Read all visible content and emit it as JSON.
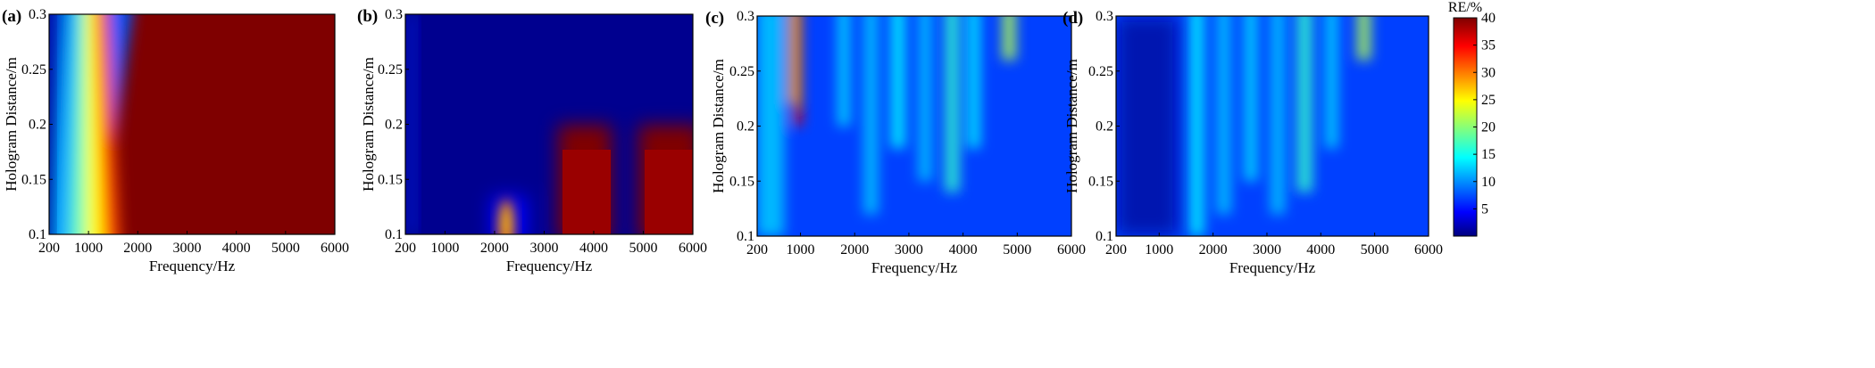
{
  "chart_data": [
    {
      "type": "heatmap",
      "panel_label": "(a)",
      "xlabel": "Frequency/Hz",
      "ylabel": "Hologram Distance/m",
      "xlim": [
        200,
        6000
      ],
      "ylim": [
        0.1,
        0.3
      ],
      "xticks": [
        "200",
        "1000",
        "2000",
        "3000",
        "4000",
        "5000",
        "6000"
      ],
      "xtick_values": [
        200,
        1000,
        2000,
        3000,
        4000,
        5000,
        6000
      ],
      "yticks": [
        "0.1",
        "0.15",
        "0.2",
        "0.25",
        "0.3"
      ],
      "ytick_values": [
        0.1,
        0.15,
        0.2,
        0.25,
        0.3
      ],
      "description_regions": [
        {
          "from_freq_at_y01": 200,
          "to_freq_at_y01": 1200,
          "from_freq_at_y03": 200,
          "to_freq_at_y03": 900,
          "value": 3
        },
        {
          "boundary_freq_at_y01": 1700,
          "boundary_freq_at_y03": 1180,
          "value_above": 40
        }
      ]
    },
    {
      "type": "heatmap",
      "panel_label": "(b)",
      "xlabel": "Frequency/Hz",
      "ylabel": "Hologram Distance/m",
      "xlim": [
        200,
        6000
      ],
      "ylim": [
        0.1,
        0.3
      ],
      "xticks": [
        "200",
        "1000",
        "2000",
        "3000",
        "4000",
        "5000",
        "6000"
      ],
      "xtick_values": [
        200,
        1000,
        2000,
        3000,
        4000,
        5000,
        6000
      ],
      "yticks": [
        "0.1",
        "0.15",
        "0.2",
        "0.25",
        "0.3"
      ],
      "ytick_values": [
        0.1,
        0.15,
        0.2,
        0.25,
        0.3
      ],
      "high_regions": [
        {
          "x": [
            2150,
            2600
          ],
          "y": [
            0.1,
            0.145
          ],
          "peak": 35
        },
        {
          "x": [
            3300,
            4400
          ],
          "y": [
            0.1,
            0.19
          ],
          "peak": 40
        },
        {
          "x": [
            5300,
            6000
          ],
          "y": [
            0.1,
            0.19
          ],
          "peak": 40
        }
      ]
    },
    {
      "type": "heatmap",
      "panel_label": "(c)",
      "xlabel": "Frequency/Hz",
      "ylabel": "Hologram Distance/m",
      "xlim": [
        200,
        6000
      ],
      "ylim": [
        0.1,
        0.3
      ],
      "xticks": [
        "200",
        "1000",
        "2000",
        "3000",
        "4000",
        "5000",
        "6000"
      ],
      "xtick_values": [
        200,
        1000,
        2000,
        3000,
        4000,
        5000,
        6000
      ],
      "yticks": [
        "0.1",
        "0.15",
        "0.2",
        "0.25",
        "0.3"
      ],
      "ytick_values": [
        0.1,
        0.15,
        0.2,
        0.25,
        0.3
      ],
      "streaks": [
        {
          "x": 450,
          "w": 500,
          "y0": 0.1,
          "y1": 0.3,
          "value": 13
        },
        {
          "x": 950,
          "w": 160,
          "y0": 0.2,
          "y1": 0.3,
          "value": 36
        },
        {
          "x": 870,
          "w": 180,
          "y0": 0.22,
          "y1": 0.3,
          "value": 28
        },
        {
          "x": 1800,
          "w": 220,
          "y0": 0.2,
          "y1": 0.3,
          "value": 14
        },
        {
          "x": 2300,
          "w": 260,
          "y0": 0.12,
          "y1": 0.3,
          "value": 13
        },
        {
          "x": 2800,
          "w": 260,
          "y0": 0.18,
          "y1": 0.3,
          "value": 15
        },
        {
          "x": 3300,
          "w": 240,
          "y0": 0.15,
          "y1": 0.3,
          "value": 13
        },
        {
          "x": 3800,
          "w": 260,
          "y0": 0.14,
          "y1": 0.3,
          "value": 17
        },
        {
          "x": 4200,
          "w": 220,
          "y0": 0.18,
          "y1": 0.3,
          "value": 15
        },
        {
          "x": 4850,
          "w": 250,
          "y0": 0.26,
          "y1": 0.3,
          "value": 22
        }
      ]
    },
    {
      "type": "heatmap",
      "panel_label": "(d)",
      "xlabel": "Frequency/Hz",
      "ylabel": "Hologram Distance/m",
      "xlim": [
        200,
        6000
      ],
      "ylim": [
        0.1,
        0.3
      ],
      "xticks": [
        "200",
        "1000",
        "2000",
        "3000",
        "4000",
        "5000",
        "6000"
      ],
      "xtick_values": [
        200,
        1000,
        2000,
        3000,
        4000,
        5000,
        6000
      ],
      "yticks": [
        "0.1",
        "0.15",
        "0.2",
        "0.25",
        "0.3"
      ],
      "ytick_values": [
        0.1,
        0.15,
        0.2,
        0.25,
        0.3
      ],
      "streaks": [
        {
          "x": 1700,
          "w": 260,
          "y0": 0.1,
          "y1": 0.3,
          "value": 15
        },
        {
          "x": 2200,
          "w": 260,
          "y0": 0.12,
          "y1": 0.3,
          "value": 13
        },
        {
          "x": 2700,
          "w": 240,
          "y0": 0.15,
          "y1": 0.3,
          "value": 14
        },
        {
          "x": 3200,
          "w": 260,
          "y0": 0.12,
          "y1": 0.3,
          "value": 13
        },
        {
          "x": 3700,
          "w": 280,
          "y0": 0.14,
          "y1": 0.3,
          "value": 17
        },
        {
          "x": 4200,
          "w": 220,
          "y0": 0.18,
          "y1": 0.3,
          "value": 14
        },
        {
          "x": 4800,
          "w": 250,
          "y0": 0.26,
          "y1": 0.3,
          "value": 22
        }
      ]
    }
  ],
  "colorbar": {
    "title": "RE/%",
    "min": 0,
    "max": 40,
    "ticks": [
      "40",
      "35",
      "30",
      "25",
      "20",
      "15",
      "10",
      "5"
    ],
    "tick_values": [
      40,
      35,
      30,
      25,
      20,
      15,
      10,
      5
    ],
    "colormap": "jet"
  }
}
